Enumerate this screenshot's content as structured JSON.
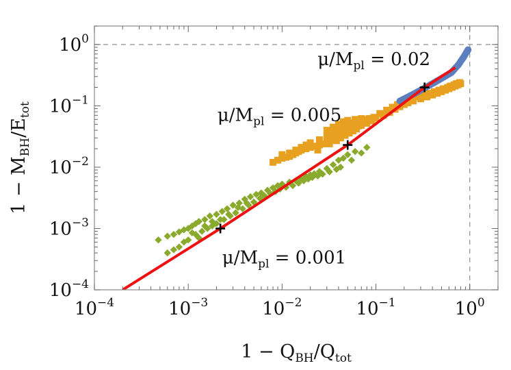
{
  "chart_data": {
    "type": "scatter",
    "title": "",
    "xlabel": {
      "prefix": "1 − Q",
      "sub1": "BH",
      "mid": "/Q",
      "sub2": "tot"
    },
    "ylabel": {
      "prefix": "1 − M",
      "sub1": "BH",
      "mid": "/E",
      "sub2": "tot"
    },
    "xscale": "log",
    "yscale": "log",
    "xlim": [
      0.0001,
      2
    ],
    "ylim": [
      0.0001,
      2
    ],
    "xticks": [
      {
        "value": 0.0001,
        "base": "10",
        "exp": "−4"
      },
      {
        "value": 0.001,
        "base": "10",
        "exp": "−3"
      },
      {
        "value": 0.01,
        "base": "10",
        "exp": "−2"
      },
      {
        "value": 0.1,
        "base": "10",
        "exp": "−1"
      },
      {
        "value": 1,
        "base": "10",
        "exp": "0"
      }
    ],
    "yticks": [
      {
        "value": 0.0001,
        "base": "10",
        "exp": "−4"
      },
      {
        "value": 0.001,
        "base": "10",
        "exp": "−3"
      },
      {
        "value": 0.01,
        "base": "10",
        "exp": "−2"
      },
      {
        "value": 0.1,
        "base": "10",
        "exp": "−1"
      },
      {
        "value": 1,
        "base": "10",
        "exp": "0"
      }
    ],
    "reference_lines": [
      {
        "orientation": "vertical",
        "value": 1,
        "style": "dashed",
        "color": "#999999"
      },
      {
        "orientation": "horizontal",
        "value": 1,
        "style": "dashed",
        "color": "#999999"
      }
    ],
    "fit_line": {
      "color": "#ee1111",
      "x": [
        0.0002,
        0.0022,
        0.05,
        0.33,
        0.7
      ],
      "y": [
        0.0001,
        0.001,
        0.023,
        0.2,
        0.42
      ]
    },
    "series": [
      {
        "marker": "diamond",
        "color": "#8aaa2e",
        "points": [
          [
            0.00048,
            0.00065
          ],
          [
            0.0006,
            0.00075
          ],
          [
            0.0007,
            0.0008
          ],
          [
            0.0008,
            0.00088
          ],
          [
            0.0009,
            0.00095
          ],
          [
            0.001,
            0.001
          ],
          [
            0.0011,
            0.0011
          ],
          [
            0.0012,
            0.0012
          ],
          [
            0.0013,
            0.0013
          ],
          [
            0.0015,
            0.0014
          ],
          [
            0.0017,
            0.0016
          ],
          [
            0.002,
            0.0017
          ],
          [
            0.0023,
            0.0019
          ],
          [
            0.0026,
            0.0021
          ],
          [
            0.003,
            0.0024
          ],
          [
            0.0035,
            0.0026
          ],
          [
            0.004,
            0.003
          ],
          [
            0.0046,
            0.0033
          ],
          [
            0.0053,
            0.0036
          ],
          [
            0.006,
            0.0038
          ],
          [
            0.007,
            0.0042
          ],
          [
            0.008,
            0.0046
          ],
          [
            0.009,
            0.005
          ],
          [
            0.01,
            0.0053
          ],
          [
            0.012,
            0.0057
          ],
          [
            0.014,
            0.006
          ],
          [
            0.016,
            0.0065
          ],
          [
            0.018,
            0.007
          ],
          [
            0.02,
            0.0075
          ],
          [
            0.022,
            0.0078
          ],
          [
            0.025,
            0.0085
          ],
          [
            0.03,
            0.0095
          ],
          [
            0.035,
            0.011
          ],
          [
            0.04,
            0.013
          ],
          [
            0.045,
            0.014
          ],
          [
            0.05,
            0.016
          ],
          [
            0.06,
            0.018
          ],
          [
            0.08,
            0.021
          ],
          [
            0.0009,
            0.0006
          ],
          [
            0.001,
            0.00065
          ],
          [
            0.0012,
            0.0008
          ],
          [
            0.0014,
            0.0009
          ],
          [
            0.0016,
            0.001
          ],
          [
            0.0018,
            0.0011
          ],
          [
            0.002,
            0.0012
          ],
          [
            0.0024,
            0.0014
          ],
          [
            0.0028,
            0.0016
          ],
          [
            0.0032,
            0.0018
          ],
          [
            0.0038,
            0.0021
          ],
          [
            0.0044,
            0.0024
          ],
          [
            0.005,
            0.0027
          ],
          [
            0.0006,
            0.0004
          ],
          [
            0.0007,
            0.00045
          ],
          [
            0.0008,
            0.0005
          ],
          [
            0.0013,
            0.0007
          ],
          [
            0.0018,
            0.0013
          ],
          [
            0.0022,
            0.0014
          ],
          [
            0.0027,
            0.0017
          ],
          [
            0.0015,
            0.0011
          ],
          [
            0.0011,
            0.00085
          ],
          [
            0.0034,
            0.0022
          ],
          [
            0.0042,
            0.0026
          ],
          [
            0.0058,
            0.0031
          ],
          [
            0.0065,
            0.0034
          ],
          [
            0.0075,
            0.0037
          ],
          [
            0.0085,
            0.004
          ],
          [
            0.0095,
            0.0044
          ],
          [
            0.011,
            0.0047
          ],
          [
            0.013,
            0.005
          ],
          [
            0.015,
            0.0055
          ],
          [
            0.017,
            0.006
          ],
          [
            0.019,
            0.0064
          ],
          [
            0.021,
            0.0068
          ],
          [
            0.024,
            0.0072
          ],
          [
            0.027,
            0.0077
          ],
          [
            0.032,
            0.0084
          ],
          [
            0.038,
            0.0092
          ],
          [
            0.042,
            0.01
          ],
          [
            0.055,
            0.013
          ],
          [
            0.07,
            0.017
          ]
        ]
      },
      {
        "marker": "square",
        "color": "#e8a020",
        "points": [
          [
            0.008,
            0.012
          ],
          [
            0.009,
            0.013
          ],
          [
            0.01,
            0.014
          ],
          [
            0.011,
            0.0145
          ],
          [
            0.012,
            0.015
          ],
          [
            0.013,
            0.016
          ],
          [
            0.014,
            0.017
          ],
          [
            0.015,
            0.018
          ],
          [
            0.016,
            0.019
          ],
          [
            0.018,
            0.02
          ],
          [
            0.02,
            0.021
          ],
          [
            0.022,
            0.022
          ],
          [
            0.025,
            0.023
          ],
          [
            0.028,
            0.024
          ],
          [
            0.03,
            0.026
          ],
          [
            0.033,
            0.028
          ],
          [
            0.036,
            0.03
          ],
          [
            0.04,
            0.033
          ],
          [
            0.045,
            0.037
          ],
          [
            0.05,
            0.04
          ],
          [
            0.055,
            0.043
          ],
          [
            0.06,
            0.045
          ],
          [
            0.065,
            0.047
          ],
          [
            0.07,
            0.048
          ],
          [
            0.08,
            0.052
          ],
          [
            0.09,
            0.057
          ],
          [
            0.1,
            0.063
          ],
          [
            0.12,
            0.07
          ],
          [
            0.14,
            0.078
          ],
          [
            0.16,
            0.088
          ],
          [
            0.18,
            0.097
          ],
          [
            0.2,
            0.105
          ],
          [
            0.22,
            0.112
          ],
          [
            0.25,
            0.12
          ],
          [
            0.3,
            0.13
          ],
          [
            0.35,
            0.14
          ],
          [
            0.4,
            0.15
          ],
          [
            0.45,
            0.16
          ],
          [
            0.5,
            0.17
          ],
          [
            0.55,
            0.18
          ],
          [
            0.6,
            0.19
          ],
          [
            0.65,
            0.2
          ],
          [
            0.7,
            0.21
          ],
          [
            0.75,
            0.22
          ],
          [
            0.8,
            0.23
          ],
          [
            0.03,
            0.04
          ],
          [
            0.035,
            0.045
          ],
          [
            0.04,
            0.05
          ],
          [
            0.045,
            0.055
          ],
          [
            0.05,
            0.058
          ],
          [
            0.06,
            0.06
          ],
          [
            0.07,
            0.062
          ],
          [
            0.05,
            0.048
          ],
          [
            0.055,
            0.05
          ],
          [
            0.058,
            0.053
          ],
          [
            0.045,
            0.045
          ],
          [
            0.04,
            0.04
          ],
          [
            0.035,
            0.036
          ],
          [
            0.03,
            0.032
          ],
          [
            0.025,
            0.028
          ],
          [
            0.02,
            0.025
          ],
          [
            0.018,
            0.023
          ],
          [
            0.016,
            0.021
          ],
          [
            0.014,
            0.019
          ],
          [
            0.012,
            0.017
          ],
          [
            0.01,
            0.016
          ],
          [
            0.075,
            0.06
          ],
          [
            0.085,
            0.062
          ],
          [
            0.095,
            0.065
          ],
          [
            0.11,
            0.075
          ],
          [
            0.13,
            0.085
          ],
          [
            0.15,
            0.095
          ],
          [
            0.17,
            0.105
          ],
          [
            0.19,
            0.115
          ],
          [
            0.21,
            0.12
          ],
          [
            0.24,
            0.13
          ],
          [
            0.27,
            0.14
          ],
          [
            0.32,
            0.15
          ],
          [
            0.37,
            0.16
          ],
          [
            0.42,
            0.17
          ],
          [
            0.47,
            0.18
          ],
          [
            0.52,
            0.19
          ],
          [
            0.58,
            0.2
          ],
          [
            0.62,
            0.21
          ],
          [
            0.68,
            0.22
          ],
          [
            0.72,
            0.23
          ],
          [
            0.78,
            0.24
          ],
          [
            0.024,
            0.019
          ],
          [
            0.032,
            0.024
          ],
          [
            0.038,
            0.027
          ],
          [
            0.042,
            0.03
          ],
          [
            0.047,
            0.033
          ],
          [
            0.052,
            0.036
          ],
          [
            0.057,
            0.039
          ],
          [
            0.062,
            0.042
          ]
        ]
      },
      {
        "marker": "circle",
        "color": "#5b7fbf",
        "points": [
          [
            0.18,
            0.12
          ],
          [
            0.19,
            0.125
          ],
          [
            0.2,
            0.13
          ],
          [
            0.21,
            0.135
          ],
          [
            0.22,
            0.14
          ],
          [
            0.23,
            0.145
          ],
          [
            0.24,
            0.15
          ],
          [
            0.25,
            0.155
          ],
          [
            0.26,
            0.16
          ],
          [
            0.27,
            0.165
          ],
          [
            0.28,
            0.17
          ],
          [
            0.29,
            0.175
          ],
          [
            0.3,
            0.18
          ],
          [
            0.32,
            0.19
          ],
          [
            0.34,
            0.2
          ],
          [
            0.36,
            0.21
          ],
          [
            0.38,
            0.22
          ],
          [
            0.4,
            0.23
          ],
          [
            0.42,
            0.24
          ],
          [
            0.44,
            0.25
          ],
          [
            0.46,
            0.26
          ],
          [
            0.48,
            0.27
          ],
          [
            0.5,
            0.28
          ],
          [
            0.52,
            0.29
          ],
          [
            0.54,
            0.3
          ],
          [
            0.56,
            0.31
          ],
          [
            0.58,
            0.32
          ],
          [
            0.6,
            0.33
          ],
          [
            0.62,
            0.34
          ],
          [
            0.64,
            0.35
          ],
          [
            0.66,
            0.37
          ],
          [
            0.68,
            0.39
          ],
          [
            0.7,
            0.41
          ],
          [
            0.72,
            0.43
          ],
          [
            0.74,
            0.45
          ],
          [
            0.76,
            0.47
          ],
          [
            0.78,
            0.5
          ],
          [
            0.8,
            0.53
          ],
          [
            0.82,
            0.56
          ],
          [
            0.84,
            0.59
          ],
          [
            0.86,
            0.62
          ],
          [
            0.88,
            0.66
          ],
          [
            0.9,
            0.7
          ],
          [
            0.92,
            0.74
          ],
          [
            0.94,
            0.78
          ],
          [
            0.95,
            0.8
          ],
          [
            0.96,
            0.82
          ]
        ]
      }
    ],
    "markers": [
      {
        "x": 0.0022,
        "y": 0.001,
        "symbol": "+"
      },
      {
        "x": 0.05,
        "y": 0.023,
        "symbol": "+"
      },
      {
        "x": 0.33,
        "y": 0.2,
        "symbol": "+"
      }
    ],
    "annotations": [
      {
        "text_prefix": "μ/M",
        "sub": "pl",
        "text_suffix": " = 0.02",
        "x": 0.38,
        "y": 0.46,
        "anchor": "end"
      },
      {
        "text_prefix": "μ/M",
        "sub": "pl",
        "text_suffix": " = 0.005",
        "x": 0.043,
        "y": 0.057,
        "anchor": "end"
      },
      {
        "text_prefix": "μ/M",
        "sub": "pl",
        "text_suffix": " = 0.001",
        "x": 0.0023,
        "y": 0.00027,
        "anchor": "start"
      }
    ]
  }
}
